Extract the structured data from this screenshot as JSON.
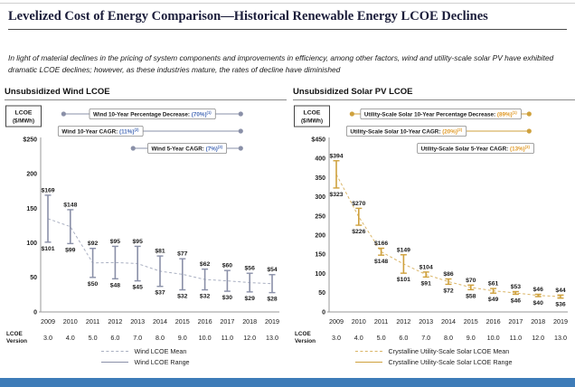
{
  "page": {
    "title": "Levelized Cost of Energy Comparison—Historical Renewable Energy LCOE Declines",
    "subtitle": "In light of material declines in the pricing of system components and improvements in efficiency, among other factors, wind and utility-scale solar PV have exhibited dramatic LCOE declines; however, as these industries mature, the rates of decline have diminished"
  },
  "chart_data": [
    {
      "type": "range-line",
      "title": "Unsubsidized Wind LCOE",
      "ylabel_lines": [
        "LCOE",
        "($/MWh)"
      ],
      "ylim": [
        0,
        250
      ],
      "ytick_values": [
        250,
        200,
        150,
        100,
        50,
        0
      ],
      "ytick_labels": [
        "$250",
        "200",
        "150",
        "100",
        "50",
        "0"
      ],
      "x": [
        "2009",
        "2010",
        "2011",
        "2012",
        "2013",
        "2014",
        "2015",
        "2016",
        "2017",
        "2018",
        "2019"
      ],
      "series": [
        {
          "name": "Wind LCOE Range",
          "high": [
            169,
            148,
            92,
            95,
            95,
            81,
            77,
            62,
            60,
            56,
            54
          ],
          "low": [
            101,
            99,
            50,
            48,
            45,
            37,
            32,
            32,
            30,
            29,
            28
          ]
        },
        {
          "name": "Wind LCOE Mean",
          "derived": "midpoint of range"
        }
      ],
      "version_label_lines": [
        "LCOE",
        "Version"
      ],
      "lcoe_versions": [
        "3.0",
        "4.0",
        "5.0",
        "6.0",
        "7.0",
        "8.0",
        "9.0",
        "10.0",
        "11.0",
        "12.0",
        "13.0"
      ],
      "annotations": [
        {
          "label": "Wind 10-Year Percentage Decrease:",
          "value": "(70%)",
          "sup": "(1)",
          "from": 0.07,
          "to": 0.86,
          "align": "center"
        },
        {
          "label": "Wind 10-Year CAGR:",
          "value": "(11%)",
          "sup": "(2)",
          "from": 0.07,
          "to": 0.86,
          "align": "left"
        },
        {
          "label": "Wind 5-Year CAGR:",
          "value": "(7%)",
          "sup": "(3)",
          "from": 0.38,
          "to": 0.86,
          "align": "center"
        }
      ],
      "legend": [
        {
          "label": "Wind LCOE Mean",
          "style": "dashed"
        },
        {
          "label": "Wind LCOE Range",
          "style": "solid"
        }
      ],
      "color": "#8a90a8",
      "mean_color": "#aab0c2",
      "value_color": "#4a6db8"
    },
    {
      "type": "range-line",
      "title": "Unsubsidized Solar PV LCOE",
      "ylabel_lines": [
        "LCOE",
        "($/MWh)"
      ],
      "ylim": [
        0,
        450
      ],
      "ytick_values": [
        450,
        400,
        350,
        300,
        250,
        200,
        150,
        100,
        50,
        0
      ],
      "ytick_labels": [
        "$450",
        "400",
        "350",
        "300",
        "250",
        "200",
        "150",
        "100",
        "50",
        "0"
      ],
      "x": [
        "2009",
        "2010",
        "2011",
        "2012",
        "2013",
        "2014",
        "2015",
        "2016",
        "2017",
        "2018",
        "2019"
      ],
      "series": [
        {
          "name": "Crystalline Utility-Scale Solar LCOE Range",
          "high": [
            394,
            270,
            166,
            149,
            104,
            86,
            70,
            61,
            53,
            46,
            44
          ],
          "low": [
            323,
            226,
            148,
            101,
            91,
            72,
            58,
            49,
            46,
            40,
            36
          ]
        },
        {
          "name": "Crystalline Utility-Scale Solar LCOE Mean",
          "derived": "midpoint of range"
        }
      ],
      "version_label_lines": [
        "LCOE",
        "Version"
      ],
      "lcoe_versions": [
        "3.0",
        "4.0",
        "5.0",
        "6.0",
        "7.0",
        "8.0",
        "9.0",
        "10.0",
        "11.0",
        "12.0",
        "13.0"
      ],
      "annotations": [
        {
          "label": "Utility-Scale Solar 10-Year Percentage Decrease:",
          "value": "(89%)",
          "sup": "(1)",
          "from": 0.07,
          "to": 0.86,
          "align": "center"
        },
        {
          "label": "Utility-Scale Solar 10-Year CAGR:",
          "value": "(20%)",
          "sup": "(2)",
          "from": 0.07,
          "to": 0.86,
          "align": "left"
        },
        {
          "label": "Utility-Scale Solar 5-Year CAGR:",
          "value": "(13%)",
          "sup": "(3)",
          "from": 0.38,
          "to": 0.86,
          "align": "center"
        }
      ],
      "legend": [
        {
          "label": "Crystalline Utility-Scale Solar LCOE Mean",
          "style": "dashed"
        },
        {
          "label": "Crystalline Utility-Scale Solar LCOE Range",
          "style": "solid"
        }
      ],
      "color": "#cfa13d",
      "mean_color": "#dab566",
      "value_color": "#e09a28"
    }
  ],
  "footer": {
    "bar_color": "#3e7cb8"
  }
}
